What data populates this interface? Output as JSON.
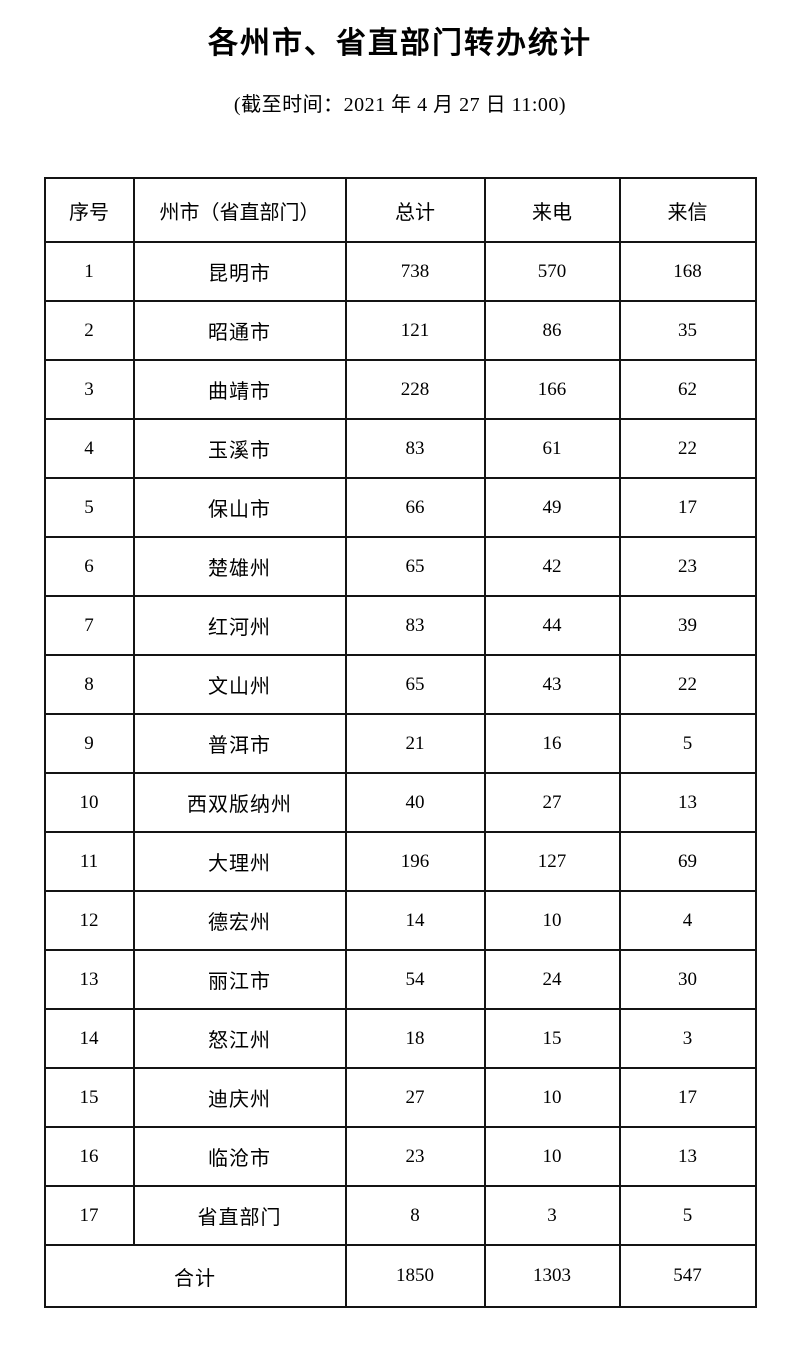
{
  "page": {
    "title": "各州市、省直部门转办统计",
    "subtitle": "(截至时间：2021 年 4 月 27 日 11:00)"
  },
  "table": {
    "headers": [
      "序号",
      "州市（省直部门）",
      "总计",
      "来电",
      "来信"
    ],
    "rows": [
      {
        "no": "1",
        "name": "昆明市",
        "total": "738",
        "calls": "570",
        "letters": "168"
      },
      {
        "no": "2",
        "name": "昭通市",
        "total": "121",
        "calls": "86",
        "letters": "35"
      },
      {
        "no": "3",
        "name": "曲靖市",
        "total": "228",
        "calls": "166",
        "letters": "62"
      },
      {
        "no": "4",
        "name": "玉溪市",
        "total": "83",
        "calls": "61",
        "letters": "22"
      },
      {
        "no": "5",
        "name": "保山市",
        "total": "66",
        "calls": "49",
        "letters": "17"
      },
      {
        "no": "6",
        "name": "楚雄州",
        "total": "65",
        "calls": "42",
        "letters": "23"
      },
      {
        "no": "7",
        "name": "红河州",
        "total": "83",
        "calls": "44",
        "letters": "39"
      },
      {
        "no": "8",
        "name": "文山州",
        "total": "65",
        "calls": "43",
        "letters": "22"
      },
      {
        "no": "9",
        "name": "普洱市",
        "total": "21",
        "calls": "16",
        "letters": "5"
      },
      {
        "no": "10",
        "name": "西双版纳州",
        "total": "40",
        "calls": "27",
        "letters": "13"
      },
      {
        "no": "11",
        "name": "大理州",
        "total": "196",
        "calls": "127",
        "letters": "69"
      },
      {
        "no": "12",
        "name": "德宏州",
        "total": "14",
        "calls": "10",
        "letters": "4"
      },
      {
        "no": "13",
        "name": "丽江市",
        "total": "54",
        "calls": "24",
        "letters": "30"
      },
      {
        "no": "14",
        "name": "怒江州",
        "total": "18",
        "calls": "15",
        "letters": "3"
      },
      {
        "no": "15",
        "name": "迪庆州",
        "total": "27",
        "calls": "10",
        "letters": "17"
      },
      {
        "no": "16",
        "name": "临沧市",
        "total": "23",
        "calls": "10",
        "letters": "13"
      },
      {
        "no": "17",
        "name": "省直部门",
        "total": "8",
        "calls": "3",
        "letters": "5"
      }
    ],
    "footer": {
      "label": "合计",
      "total": "1850",
      "calls": "1303",
      "letters": "547"
    }
  }
}
